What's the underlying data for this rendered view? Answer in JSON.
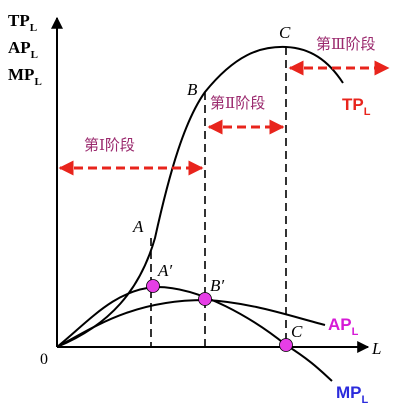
{
  "y_axis_labels": [
    {
      "main": "TP",
      "sub": "L"
    },
    {
      "main": "AP",
      "sub": "L"
    },
    {
      "main": "MP",
      "sub": "L"
    }
  ],
  "origin_label": "0",
  "x_axis_label": "L",
  "point_labels": {
    "A": "A",
    "B": "B",
    "C": "C",
    "A_prime": "A′",
    "B_prime": "B′",
    "C_prime": "C"
  },
  "curve_labels": {
    "tp": {
      "main": "TP",
      "sub": "L"
    },
    "ap": {
      "main": "AP",
      "sub": "L"
    },
    "mp": {
      "main": "MP",
      "sub": "L"
    }
  },
  "stages": {
    "stage1": "第Ⅰ阶段",
    "stage2": "第Ⅱ阶段",
    "stage3": "第Ⅲ阶段"
  },
  "colors": {
    "curve": "#000000",
    "stage_arrow": "#e8241c",
    "stage_text": "#9b2a6e",
    "tp_label": "#e8241c",
    "ap_label": "#d61ad6",
    "mp_label": "#2b2bdc",
    "point_fill": "#e63ee6"
  }
}
